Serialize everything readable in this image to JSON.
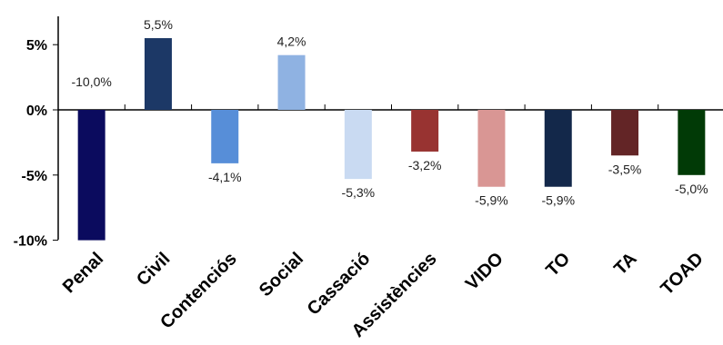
{
  "chart_data": {
    "type": "bar",
    "title": "",
    "xlabel": "",
    "ylabel": "",
    "ylim": [
      -10,
      7
    ],
    "y_ticks": [
      "5%",
      "0%",
      "-5%",
      "-10%"
    ],
    "y_tick_values": [
      5,
      0,
      -5,
      -10
    ],
    "grid": false,
    "categories": [
      "Penal",
      "Civil",
      "Contenciós",
      "Social",
      "Cassació",
      "Assistències",
      "VIDO",
      "TO",
      "TA",
      "TOAD"
    ],
    "values": [
      -10.0,
      5.5,
      -4.1,
      4.2,
      -5.3,
      -3.2,
      -5.9,
      -5.9,
      -3.5,
      -5.0
    ],
    "value_labels": [
      "-10,0%",
      "5,5%",
      "-4,1%",
      "4,2%",
      "-5,3%",
      "-3,2%",
      "-5,9%",
      "-5,9%",
      "-3,5%",
      "-5,0%"
    ],
    "colors": [
      "#0b0b5e",
      "#1c3866",
      "#578ed8",
      "#8fb2e2",
      "#c9daf2",
      "#983331",
      "#d99694",
      "#13284a",
      "#632526",
      "#013a06"
    ]
  }
}
